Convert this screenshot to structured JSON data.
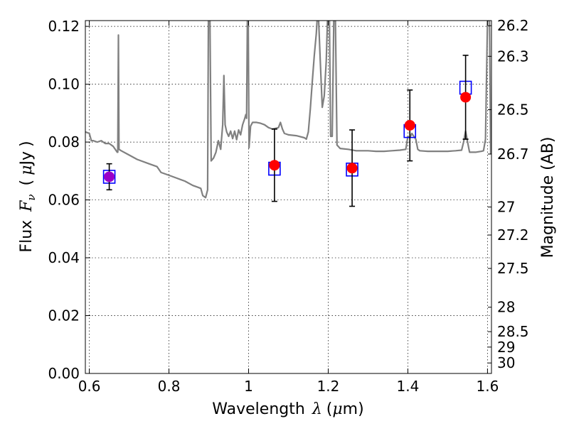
{
  "chart_data": {
    "type": "scatter",
    "title": "",
    "xlabel_parts": [
      "Wavelength",
      "λ",
      "(",
      "μ",
      "m)"
    ],
    "ylabel_parts": [
      "Flux",
      "F",
      "ν",
      "(",
      "μ",
      "Jy",
      ")"
    ],
    "y2label": "Magnitude (AB)",
    "xlim": [
      0.59,
      1.61
    ],
    "ylim": [
      0.0,
      0.122
    ],
    "grid": true,
    "x_ticks": [
      {
        "value": 0.6,
        "label": "0.6"
      },
      {
        "value": 0.8,
        "label": "0.8"
      },
      {
        "value": 1.0,
        "label": "1"
      },
      {
        "value": 1.2,
        "label": "1.2"
      },
      {
        "value": 1.4,
        "label": "1.4"
      },
      {
        "value": 1.6,
        "label": "1.6"
      }
    ],
    "y_ticks": [
      {
        "value": 0.0,
        "label": "0.00"
      },
      {
        "value": 0.02,
        "label": "0.02"
      },
      {
        "value": 0.04,
        "label": "0.04"
      },
      {
        "value": 0.06,
        "label": "0.06"
      },
      {
        "value": 0.08,
        "label": "0.08"
      },
      {
        "value": 0.1,
        "label": "0.10"
      },
      {
        "value": 0.12,
        "label": "0.12"
      }
    ],
    "y2_ticks": [
      {
        "value": 26.2,
        "label": "26.2"
      },
      {
        "value": 26.3,
        "label": "26.3"
      },
      {
        "value": 26.5,
        "label": "26.5"
      },
      {
        "value": 26.7,
        "label": "26.7"
      },
      {
        "value": 27.0,
        "label": "27"
      },
      {
        "value": 27.2,
        "label": "27.2"
      },
      {
        "value": 27.5,
        "label": "27.5"
      },
      {
        "value": 28.0,
        "label": "28"
      },
      {
        "value": 28.5,
        "label": "28.5"
      },
      {
        "value": 29.0,
        "label": "29"
      },
      {
        "value": 30.0,
        "label": "30"
      }
    ],
    "observed": {
      "marker": "circle",
      "color": "#ff0000",
      "points": [
        {
          "x": 0.65,
          "y": 0.068,
          "err_low": 0.0635,
          "err_high": 0.0725,
          "color": "#9b00c8"
        },
        {
          "x": 1.065,
          "y": 0.072,
          "err_low": 0.0595,
          "err_high": 0.0845
        },
        {
          "x": 1.26,
          "y": 0.071,
          "err_low": 0.0578,
          "err_high": 0.0842
        },
        {
          "x": 1.405,
          "y": 0.0858,
          "err_low": 0.0735,
          "err_high": 0.098
        },
        {
          "x": 1.545,
          "y": 0.0955,
          "err_low": 0.081,
          "err_high": 0.11
        }
      ]
    },
    "model_bandpass": {
      "marker": "square",
      "color": "#0000ff",
      "points": [
        {
          "x": 0.65,
          "y": 0.068
        },
        {
          "x": 1.065,
          "y": 0.0708
        },
        {
          "x": 1.26,
          "y": 0.0705
        },
        {
          "x": 1.405,
          "y": 0.0838
        },
        {
          "x": 1.545,
          "y": 0.0988
        }
      ]
    },
    "spectrum": {
      "color": "#808080",
      "points": [
        [
          0.59,
          0.0835
        ],
        [
          0.6,
          0.083
        ],
        [
          0.605,
          0.0805
        ],
        [
          0.61,
          0.0805
        ],
        [
          0.62,
          0.08
        ],
        [
          0.63,
          0.0805
        ],
        [
          0.64,
          0.0795
        ],
        [
          0.65,
          0.0795
        ],
        [
          0.66,
          0.0785
        ],
        [
          0.665,
          0.0775
        ],
        [
          0.67,
          0.0765
        ],
        [
          0.6715,
          0.0765
        ],
        [
          0.673,
          0.117
        ],
        [
          0.6745,
          0.0775
        ],
        [
          0.68,
          0.077
        ],
        [
          0.7,
          0.0755
        ],
        [
          0.72,
          0.074
        ],
        [
          0.75,
          0.0725
        ],
        [
          0.77,
          0.0715
        ],
        [
          0.78,
          0.0695
        ],
        [
          0.8,
          0.0685
        ],
        [
          0.82,
          0.0675
        ],
        [
          0.84,
          0.0665
        ],
        [
          0.86,
          0.065
        ],
        [
          0.87,
          0.0645
        ],
        [
          0.88,
          0.064
        ],
        [
          0.885,
          0.0615
        ],
        [
          0.892,
          0.0608
        ],
        [
          0.897,
          0.0635
        ],
        [
          0.899,
          0.122
        ],
        [
          0.903,
          0.122
        ],
        [
          0.906,
          0.0735
        ],
        [
          0.912,
          0.0745
        ],
        [
          0.918,
          0.0765
        ],
        [
          0.924,
          0.0805
        ],
        [
          0.93,
          0.0775
        ],
        [
          0.935,
          0.086
        ],
        [
          0.938,
          0.103
        ],
        [
          0.941,
          0.086
        ],
        [
          0.945,
          0.0835
        ],
        [
          0.95,
          0.082
        ],
        [
          0.955,
          0.0838
        ],
        [
          0.96,
          0.0812
        ],
        [
          0.965,
          0.0838
        ],
        [
          0.97,
          0.0808
        ],
        [
          0.975,
          0.0842
        ],
        [
          0.98,
          0.0825
        ],
        [
          0.985,
          0.086
        ],
        [
          0.99,
          0.088
        ],
        [
          0.993,
          0.0895
        ],
        [
          0.995,
          0.0882
        ],
        [
          0.997,
          0.122
        ],
        [
          0.999,
          0.122
        ],
        [
          1.001,
          0.078
        ],
        [
          1.005,
          0.0855
        ],
        [
          1.01,
          0.0868
        ],
        [
          1.02,
          0.0868
        ],
        [
          1.03,
          0.0865
        ],
        [
          1.04,
          0.086
        ],
        [
          1.05,
          0.085
        ],
        [
          1.06,
          0.0845
        ],
        [
          1.07,
          0.0848
        ],
        [
          1.075,
          0.085
        ],
        [
          1.08,
          0.0868
        ],
        [
          1.085,
          0.0845
        ],
        [
          1.09,
          0.083
        ],
        [
          1.1,
          0.0825
        ],
        [
          1.12,
          0.0822
        ],
        [
          1.14,
          0.0815
        ],
        [
          1.145,
          0.081
        ],
        [
          1.15,
          0.0835
        ],
        [
          1.155,
          0.0915
        ],
        [
          1.16,
          0.101
        ],
        [
          1.165,
          0.11
        ],
        [
          1.17,
          0.1175
        ],
        [
          1.172,
          0.122
        ],
        [
          1.176,
          0.122
        ],
        [
          1.18,
          0.108
        ],
        [
          1.185,
          0.092
        ],
        [
          1.19,
          0.096
        ],
        [
          1.195,
          0.108
        ],
        [
          1.198,
          0.122
        ],
        [
          1.203,
          0.122
        ],
        [
          1.206,
          0.082
        ],
        [
          1.21,
          0.082
        ],
        [
          1.214,
          0.122
        ],
        [
          1.218,
          0.122
        ],
        [
          1.222,
          0.079
        ],
        [
          1.23,
          0.0778
        ],
        [
          1.25,
          0.0775
        ],
        [
          1.27,
          0.077
        ],
        [
          1.3,
          0.077
        ],
        [
          1.32,
          0.0768
        ],
        [
          1.34,
          0.0768
        ],
        [
          1.36,
          0.077
        ],
        [
          1.38,
          0.0772
        ],
        [
          1.395,
          0.0775
        ],
        [
          1.4,
          0.082
        ],
        [
          1.405,
          0.0815
        ],
        [
          1.41,
          0.083
        ],
        [
          1.415,
          0.082
        ],
        [
          1.42,
          0.081
        ],
        [
          1.425,
          0.0775
        ],
        [
          1.43,
          0.077
        ],
        [
          1.45,
          0.0768
        ],
        [
          1.48,
          0.0768
        ],
        [
          1.5,
          0.0768
        ],
        [
          1.52,
          0.077
        ],
        [
          1.535,
          0.0772
        ],
        [
          1.54,
          0.08
        ],
        [
          1.545,
          0.0838
        ],
        [
          1.55,
          0.08
        ],
        [
          1.555,
          0.0765
        ],
        [
          1.57,
          0.0765
        ],
        [
          1.585,
          0.0768
        ],
        [
          1.59,
          0.077
        ],
        [
          1.595,
          0.081
        ],
        [
          1.6,
          0.122
        ],
        [
          1.605,
          0.122
        ],
        [
          1.608,
          0.076
        ],
        [
          1.61,
          0.076
        ]
      ]
    }
  }
}
